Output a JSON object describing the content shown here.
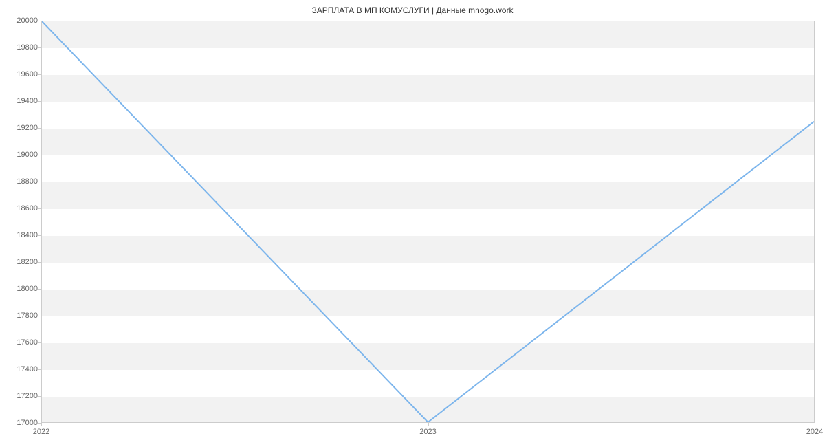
{
  "chart": {
    "type": "line",
    "title": "ЗАРПЛАТА В МП КОМУСЛУГИ | Данные mnogo.work",
    "title_fontsize": 12,
    "title_color": "#333333",
    "background_color": "#ffffff",
    "plot_border_color": "#cccccc",
    "grid_band_color": "#f2f2f2",
    "tick_label_color": "#666666",
    "tick_label_fontsize": 11,
    "line_color": "#7cb5ec",
    "line_width": 2,
    "x_axis": {
      "ticks": [
        "2022",
        "2023",
        "2024"
      ],
      "positions": [
        0,
        0.5,
        1
      ]
    },
    "y_axis": {
      "min": 17000,
      "max": 20000,
      "ticks": [
        17000,
        17200,
        17400,
        17600,
        17800,
        18000,
        18200,
        18400,
        18600,
        18800,
        19000,
        19200,
        19400,
        19600,
        19800,
        20000
      ]
    },
    "data": {
      "x": [
        0,
        0.5,
        1
      ],
      "y": [
        20000,
        17000,
        19250
      ]
    }
  }
}
